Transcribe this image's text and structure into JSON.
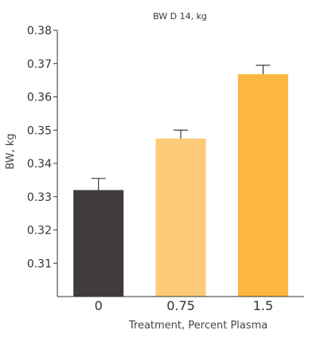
{
  "chart_data": {
    "type": "bar",
    "title": "BW D 14, kg",
    "xlabel": "Treatment, Percent Plasma",
    "ylabel": "BW, kg",
    "categories": [
      "0",
      "0.75",
      "1.5"
    ],
    "values": [
      0.332,
      0.3475,
      0.3668
    ],
    "error_upper": [
      0.3355,
      0.35,
      0.3695
    ],
    "ylim": [
      0.3,
      0.38
    ],
    "yticks": [
      "0.31",
      "0.32",
      "0.33",
      "0.34",
      "0.35",
      "0.36",
      "0.37",
      "0.38"
    ],
    "grid": false,
    "legend": "none",
    "colors": {
      "bars": [
        "#413b3c",
        "#fdca78",
        "#fdb640"
      ],
      "error_bars": [
        "#413b3c",
        "#413b3c",
        "#413b3c"
      ],
      "axis": "#333333"
    }
  }
}
